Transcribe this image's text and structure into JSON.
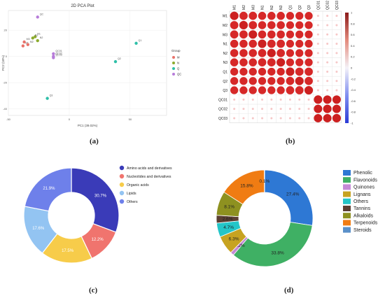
{
  "captions": {
    "a": "(a)",
    "b": "(b)",
    "c": "(c)",
    "d": "(d)"
  },
  "chart_data": [
    {
      "panel": "a",
      "type": "scatter",
      "title": "2D PCA Plot",
      "xlabel": "PC1 (39.02%)",
      "ylabel": "PC2 (18%)",
      "xlim": [
        -50,
        80
      ],
      "ylim": [
        -45,
        35
      ],
      "xticks": [
        -50,
        0,
        50
      ],
      "yticks": [
        -40,
        -20,
        0,
        20
      ],
      "legend_title": "Group",
      "legend_position": "right",
      "series": [
        {
          "name": "M",
          "color": "#e8726a",
          "points": [
            [
              -38,
              8,
              "M1"
            ],
            [
              -34,
              9,
              "M2"
            ],
            [
              -37,
              11,
              "M3"
            ]
          ]
        },
        {
          "name": "N",
          "color": "#8cab2e",
          "points": [
            [
              -28,
              15,
              "N1"
            ],
            [
              -26,
              12,
              "N2"
            ],
            [
              -30,
              14,
              "N3"
            ]
          ]
        },
        {
          "name": "Q",
          "color": "#2ebfa8",
          "points": [
            [
              55,
              10,
              "Q1"
            ],
            [
              38,
              -4,
              "Q2"
            ],
            [
              -18,
              -32,
              "Q3"
            ]
          ]
        },
        {
          "name": "QC",
          "color": "#b77cd9",
          "points": [
            [
              -26,
              30,
              "QC"
            ],
            [
              -13,
              2,
              "QC01"
            ],
            [
              -13,
              0,
              "QC02"
            ],
            [
              -13,
              -1,
              "QC03"
            ]
          ]
        }
      ]
    },
    {
      "panel": "b",
      "type": "heatmap",
      "labels": [
        "M1",
        "M2",
        "M3",
        "N1",
        "N2",
        "N3",
        "Q1",
        "Q2",
        "Q3",
        "QC01",
        "QC02",
        "QC03"
      ],
      "legend_ticks": [
        "1",
        "0.8",
        "0.6",
        "0.4",
        "0.2",
        "0",
        "-0.2",
        "-0.4",
        "-0.6",
        "-0.8",
        "-1"
      ],
      "colors": {
        "high": "#d62828",
        "mid": "#f4f2f8",
        "low": "#2b3bd6",
        "faded": "#f6c7c7",
        "strong": "#cc2020"
      },
      "values": [
        [
          1.0,
          0.97,
          0.97,
          0.95,
          0.95,
          0.95,
          0.93,
          0.93,
          0.93,
          0.25,
          0.25,
          0.25
        ],
        [
          0.97,
          1.0,
          0.97,
          0.95,
          0.95,
          0.95,
          0.93,
          0.93,
          0.93,
          0.25,
          0.25,
          0.25
        ],
        [
          0.97,
          0.97,
          1.0,
          0.95,
          0.95,
          0.95,
          0.93,
          0.93,
          0.93,
          0.25,
          0.25,
          0.25
        ],
        [
          0.95,
          0.95,
          0.95,
          1.0,
          0.97,
          0.97,
          0.93,
          0.93,
          0.93,
          0.25,
          0.25,
          0.25
        ],
        [
          0.95,
          0.95,
          0.95,
          0.97,
          1.0,
          0.97,
          0.93,
          0.93,
          0.93,
          0.25,
          0.25,
          0.25
        ],
        [
          0.95,
          0.95,
          0.95,
          0.97,
          0.97,
          1.0,
          0.93,
          0.93,
          0.93,
          0.25,
          0.25,
          0.25
        ],
        [
          0.93,
          0.93,
          0.93,
          0.93,
          0.93,
          0.93,
          1.0,
          0.97,
          0.97,
          0.25,
          0.25,
          0.25
        ],
        [
          0.93,
          0.93,
          0.93,
          0.93,
          0.93,
          0.93,
          0.97,
          1.0,
          0.97,
          0.25,
          0.25,
          0.25
        ],
        [
          0.93,
          0.93,
          0.93,
          0.93,
          0.93,
          0.93,
          0.97,
          0.97,
          1.0,
          0.25,
          0.25,
          0.25
        ],
        [
          0.25,
          0.25,
          0.25,
          0.25,
          0.25,
          0.25,
          0.25,
          0.25,
          0.25,
          1.0,
          0.99,
          0.99
        ],
        [
          0.25,
          0.25,
          0.25,
          0.25,
          0.25,
          0.25,
          0.25,
          0.25,
          0.25,
          0.99,
          1.0,
          0.99
        ],
        [
          0.25,
          0.25,
          0.25,
          0.25,
          0.25,
          0.25,
          0.25,
          0.25,
          0.25,
          0.99,
          0.99,
          1.0
        ]
      ]
    },
    {
      "panel": "c",
      "type": "pie",
      "donut": true,
      "legend_position": "right",
      "slices": [
        {
          "name": "Amino acids and derivatives",
          "value": 30.7,
          "label": "30.7%",
          "color": "#3a3bb8"
        },
        {
          "name": "Nucleotides and derivatives",
          "value": 12.2,
          "label": "12.2%",
          "color": "#f0746e"
        },
        {
          "name": "Organic acids",
          "value": 17.5,
          "label": "17.5%",
          "color": "#f7cc4a"
        },
        {
          "name": "Lipids",
          "value": 17.6,
          "label": "17.6%",
          "color": "#93c4f2"
        },
        {
          "name": "Others",
          "value": 21.9,
          "label": "21.9%",
          "color": "#6e80ea"
        }
      ]
    },
    {
      "panel": "d",
      "type": "pie",
      "donut": true,
      "legend_position": "right",
      "slices": [
        {
          "name": "Phenolic",
          "value": 27.4,
          "label": "27.4%",
          "color": "#2e78d4"
        },
        {
          "name": "Flavonoids",
          "value": 33.8,
          "label": "33.8%",
          "color": "#3fb064"
        },
        {
          "name": "Quinones",
          "value": 1.2,
          "label": "1.2%",
          "color": "#c58ad6"
        },
        {
          "name": "Lignans",
          "value": 6.3,
          "label": "6.3%",
          "color": "#c7a321"
        },
        {
          "name": "Others",
          "value": 4.7,
          "label": "4.7%",
          "color": "#24c6c8"
        },
        {
          "name": "Tannins",
          "value": 2.6,
          "label": "2.6%",
          "color": "#5b3f33"
        },
        {
          "name": "Alkaloids",
          "value": 8.1,
          "label": "8.1%",
          "color": "#8e9120"
        },
        {
          "name": "Terpenoids",
          "value": 15.8,
          "label": "15.8%",
          "color": "#f07c13"
        },
        {
          "name": "Steroids",
          "value": 0.1,
          "label": "0.1%",
          "color": "#5a90c9"
        }
      ]
    }
  ]
}
